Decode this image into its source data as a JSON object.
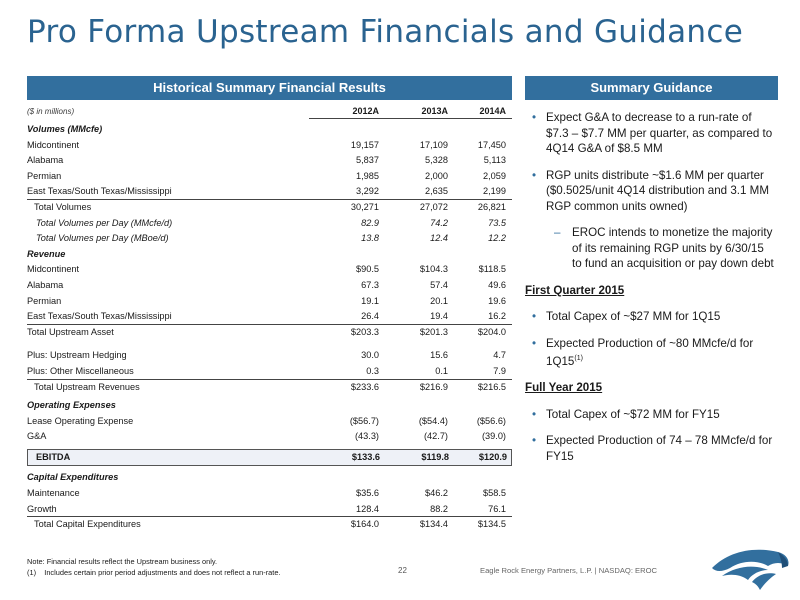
{
  "title": "Pro Forma Upstream Financials and Guidance",
  "left_header": "Historical Summary Financial Results",
  "right_header": "Summary Guidance",
  "table": {
    "units": "($ in millions)",
    "columns": [
      "2012A",
      "2013A",
      "2014A"
    ],
    "rows": [
      {
        "label": "Volumes (MMcfe)",
        "values": [
          "",
          "",
          ""
        ],
        "style": "sec"
      },
      {
        "label": "Midcontinent",
        "values": [
          "19,157",
          "17,109",
          "17,450"
        ],
        "style": ""
      },
      {
        "label": "Alabama",
        "values": [
          "5,837",
          "5,328",
          "5,113"
        ],
        "style": ""
      },
      {
        "label": "Permian",
        "values": [
          "1,985",
          "2,000",
          "2,059"
        ],
        "style": ""
      },
      {
        "label": "East Texas/South Texas/Mississippi",
        "values": [
          "3,292",
          "2,635",
          "2,199"
        ],
        "style": "botline"
      },
      {
        "label": "Total Volumes",
        "values": [
          "30,271",
          "27,072",
          "26,821"
        ],
        "style": "ind1"
      },
      {
        "label": "Total Volumes per Day (MMcfe/d)",
        "values": [
          "82.9",
          "74.2",
          "73.5"
        ],
        "style": "ind2 ital"
      },
      {
        "label": "Total Volumes per Day (MBoe/d)",
        "values": [
          "13.8",
          "12.4",
          "12.2"
        ],
        "style": "ind2 ital"
      },
      {
        "label": "Revenue",
        "values": [
          "",
          "",
          ""
        ],
        "style": "sec"
      },
      {
        "label": "Midcontinent",
        "values": [
          "$90.5",
          "$104.3",
          "$118.5"
        ],
        "style": ""
      },
      {
        "label": "Alabama",
        "values": [
          "67.3",
          "57.4",
          "49.6"
        ],
        "style": ""
      },
      {
        "label": "Permian",
        "values": [
          "19.1",
          "20.1",
          "19.6"
        ],
        "style": ""
      },
      {
        "label": "East Texas/South Texas/Mississippi",
        "values": [
          "26.4",
          "19.4",
          "16.2"
        ],
        "style": "botline"
      },
      {
        "label": "Total Upstream Asset",
        "values": [
          "$203.3",
          "$201.3",
          "$204.0"
        ],
        "style": ""
      },
      {
        "label": "",
        "values": [
          "",
          "",
          ""
        ],
        "style": "blank"
      },
      {
        "label": "Plus: Upstream Hedging",
        "values": [
          "30.0",
          "15.6",
          "4.7"
        ],
        "style": ""
      },
      {
        "label": "Plus:  Other Miscellaneous",
        "values": [
          "0.3",
          "0.1",
          "7.9"
        ],
        "style": "botline"
      },
      {
        "label": "Total Upstream Revenues",
        "values": [
          "$233.6",
          "$216.9",
          "$216.5"
        ],
        "style": "ind1"
      },
      {
        "label": "Operating Expenses",
        "values": [
          "",
          "",
          ""
        ],
        "style": "sec gap"
      },
      {
        "label": "Lease Operating Expense",
        "values": [
          "($56.7)",
          "($54.4)",
          "($56.6)"
        ],
        "style": ""
      },
      {
        "label": "G&A",
        "values": [
          "(43.3)",
          "(42.7)",
          "(39.0)"
        ],
        "style": ""
      },
      {
        "label": "EBITDA",
        "values": [
          "$133.6",
          "$119.8",
          "$120.9"
        ],
        "style": "ebitda"
      },
      {
        "label": "Capital Expenditures",
        "values": [
          "",
          "",
          ""
        ],
        "style": "sec"
      },
      {
        "label": "Maintenance",
        "values": [
          "$35.6",
          "$46.2",
          "$58.5"
        ],
        "style": ""
      },
      {
        "label": "Growth",
        "values": [
          "128.4",
          "88.2",
          "76.1"
        ],
        "style": "botline"
      },
      {
        "label": "Total Capital Expenditures",
        "values": [
          "$164.0",
          "$134.4",
          "$134.5"
        ],
        "style": "ind1"
      }
    ]
  },
  "guidance": {
    "b1": "Expect G&A to decrease to a run-rate of $7.3 – $7.7 MM per quarter, as compared to 4Q14 G&A of $8.5 MM",
    "b2": "RGP units distribute ~$1.6 MM per quarter ($0.5025/unit 4Q14 distribution and 3.1 MM RGP common units owned)",
    "sub1": "EROC intends to monetize the majority of its remaining RGP units by 6/30/15 to fund an acquisition or pay down debt",
    "q1_heading": "First Quarter 2015",
    "b3": "Total Capex of ~$27 MM for 1Q15",
    "b4": "Expected Production of ~80 MMcfe/d for 1Q15",
    "b4_sup": "(1)",
    "fy_heading": "Full Year 2015",
    "b5": "Total Capex of ~$72 MM for FY15",
    "b6": "Expected Production of 74 – 78 MMcfe/d for FY15"
  },
  "notes": {
    "note": "Note:  Financial results reflect the Upstream business only.",
    "n1_marker": "(1)",
    "n1": "Includes certain prior period adjustments and does not reflect a run-rate."
  },
  "page_number": "22",
  "footer": "Eagle Rock Energy Partners, L.P.  |  NASDAQ: EROC",
  "colors": {
    "accent": "#326f9e",
    "title": "#2a6390"
  },
  "logo_icon": "eagle-head-logo"
}
